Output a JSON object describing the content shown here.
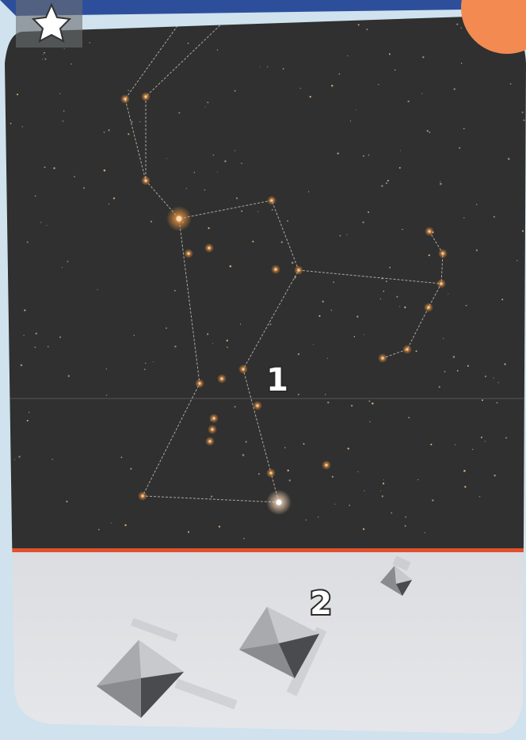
{
  "labels": {
    "sky": "1",
    "ground": "2"
  }
}
